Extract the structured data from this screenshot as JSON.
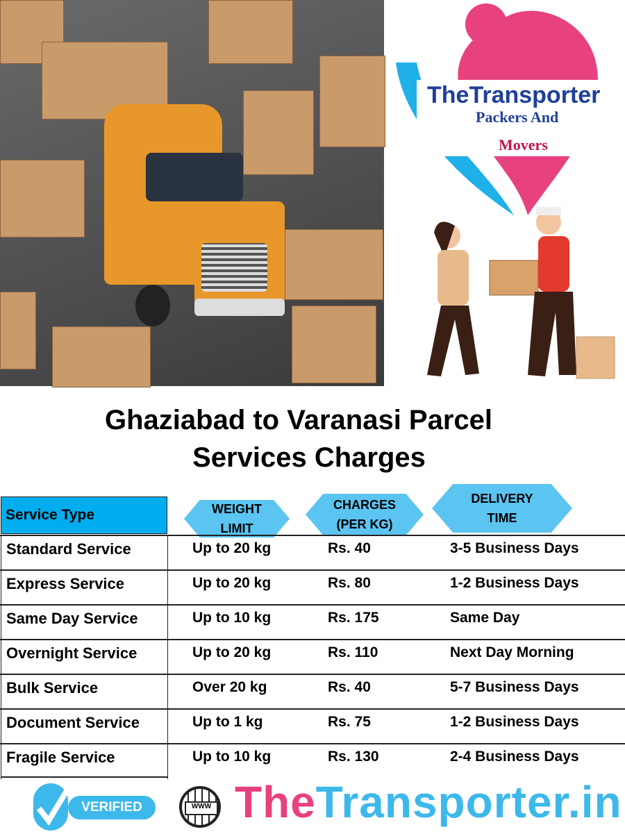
{
  "logo": {
    "line1": "TheTransporter",
    "line2": "Packers And",
    "line3": "Movers"
  },
  "title": {
    "line1": "Ghaziabad to Varanasi Parcel",
    "line2": "Services Charges"
  },
  "table": {
    "headers": [
      "Service Type",
      "WEIGHT\nLIMIT",
      "CHARGES\n(PER KG)",
      "DELIVERY\nTIME"
    ],
    "rows": [
      [
        "Standard Service",
        "Up to 20 kg",
        "Rs. 40",
        "3-5 Business Days"
      ],
      [
        "Express Service",
        "Up to 20 kg",
        "Rs. 80",
        "1-2 Business Days"
      ],
      [
        "Same Day Service",
        "Up to 10 kg",
        "Rs. 175",
        "Same Day"
      ],
      [
        "Overnight Service",
        "Up to 20 kg",
        "Rs. 110",
        "Next Day Morning"
      ],
      [
        "Bulk Service",
        "Over 20 kg",
        "Rs. 40",
        "5-7 Business Days"
      ],
      [
        "Document Service",
        "Up to 1 kg",
        "Rs. 75",
        "1-2 Business Days"
      ],
      [
        "Fragile Service",
        "Up to 10 kg",
        "Rs. 130",
        "2-4 Business Days"
      ]
    ]
  },
  "footer": {
    "verified": "VERIFIED",
    "www": "WWW",
    "site_pink": "The",
    "site_blue": "Transporter.in"
  },
  "colors": {
    "header_blue": "#00aeef",
    "hex_blue": "#5bc4f1",
    "brand_pink": "#e8417f",
    "brand_blue": "#3db8ea",
    "truck_orange": "#e8972a"
  }
}
